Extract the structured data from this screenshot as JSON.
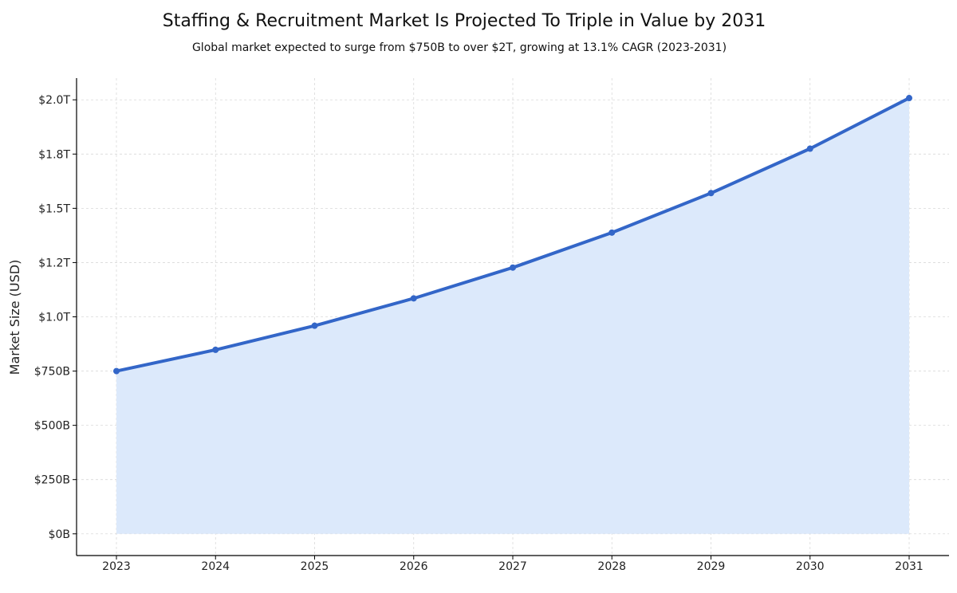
{
  "chart_data": {
    "type": "area",
    "title": "Staffing & Recruitment Market Is Projected To Triple in Value by 2031",
    "subtitle": "Global market expected to surge from $750B to over $2T, growing at 13.1% CAGR (2023-2031)",
    "xlabel": "",
    "ylabel": "Market Size (USD)",
    "x": [
      "2023",
      "2024",
      "2025",
      "2026",
      "2027",
      "2028",
      "2029",
      "2030",
      "2031"
    ],
    "series": [
      {
        "name": "Market Size",
        "values": [
          750,
          848,
          959,
          1085,
          1227,
          1388,
          1570,
          1775,
          2008
        ]
      }
    ],
    "ylim": [
      -100,
      2100
    ],
    "yticks": [
      0,
      250,
      500,
      750,
      1000,
      1250,
      1500,
      1750,
      2000
    ],
    "ytick_labels": [
      "$0B",
      "$250B",
      "$500B",
      "$750B",
      "$1.0T",
      "$1.2T",
      "$1.5T",
      "$1.8T",
      "$2.0T"
    ],
    "grid": true,
    "colors": {
      "line": "#3366c8",
      "fill": "#dce9fb",
      "grid": "#d9d9d9",
      "axis": "#000000"
    }
  }
}
